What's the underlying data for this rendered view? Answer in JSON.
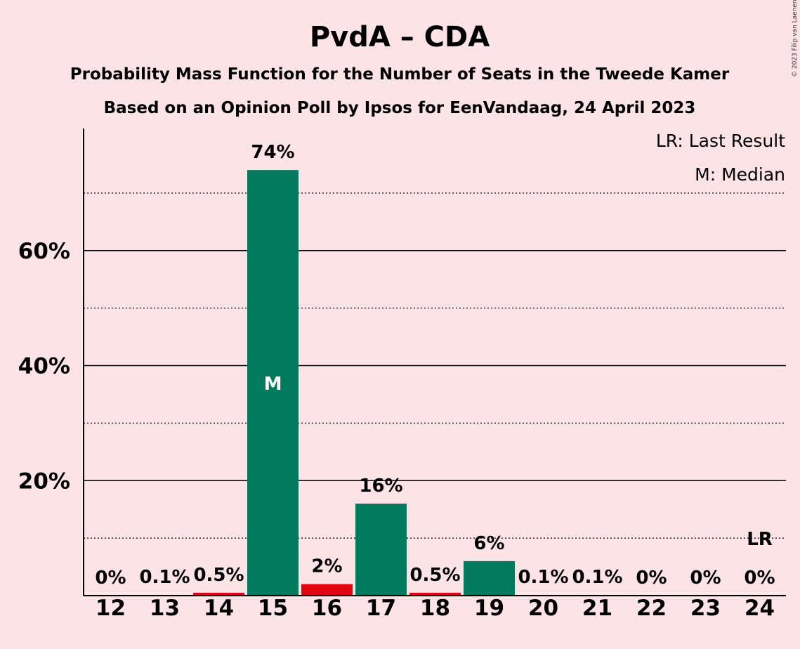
{
  "chart_data": {
    "type": "bar",
    "title": "PvdA – CDA",
    "subtitle_lines": [
      "Probability Mass Function for the Number of Seats in the Tweede Kamer",
      "Based on an Opinion Poll by Ipsos for EenVandaag, 24 April 2023"
    ],
    "copyright": "© 2023 Filip van Laenen",
    "categories": [
      "12",
      "13",
      "14",
      "15",
      "16",
      "17",
      "18",
      "19",
      "20",
      "21",
      "22",
      "23",
      "24"
    ],
    "values": [
      0,
      0.1,
      0.5,
      74,
      2,
      16,
      0.5,
      6,
      0.1,
      0.1,
      0,
      0,
      0
    ],
    "value_labels": [
      "0%",
      "0.1%",
      "0.5%",
      "74%",
      "2%",
      "16%",
      "0.5%",
      "6%",
      "0.1%",
      "0.1%",
      "0%",
      "0%",
      "0%"
    ],
    "bar_colors": [
      "#027a5e",
      "#027a5e",
      "#e3000f",
      "#027a5e",
      "#e3000f",
      "#027a5e",
      "#e3000f",
      "#027a5e",
      "#027a5e",
      "#027a5e",
      "#027a5e",
      "#027a5e",
      "#027a5e"
    ],
    "ylim": [
      0,
      80
    ],
    "yticks": [
      20,
      40,
      60
    ],
    "ytick_labels": [
      "20%",
      "40%",
      "60%"
    ],
    "minor_gridlines": [
      10,
      30,
      50,
      70
    ],
    "median_index": 3,
    "median_marker": "M",
    "last_result_index": 12,
    "last_result_marker": "LR",
    "legend": [
      "LR: Last Result",
      "M: Median"
    ],
    "legend_position": "top-right",
    "xlabel": "",
    "ylabel": ""
  }
}
